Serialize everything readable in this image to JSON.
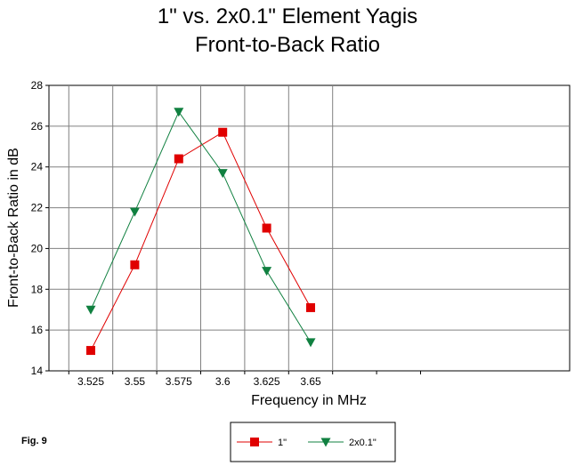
{
  "chart_data": {
    "type": "line",
    "title": [
      "1\" vs. 2x0.1\" Element Yagis",
      "Front-to-Back Ratio"
    ],
    "xlabel": "Frequency in MHz",
    "ylabel": "Front-to-Back Ratio in dB",
    "x_ticks": [
      "3.525",
      "3.55",
      "3.575",
      "3.6",
      "3.625",
      "3.65"
    ],
    "y_ticks": [
      "14",
      "16",
      "18",
      "20",
      "22",
      "24",
      "26",
      "28"
    ],
    "ylim": [
      14,
      28
    ],
    "grid": true,
    "legend_position": "bottom-center",
    "series": [
      {
        "name": "1\"",
        "color": "#e00000",
        "marker": "square",
        "values": [
          15.0,
          19.2,
          24.4,
          25.7,
          21.0,
          17.1
        ]
      },
      {
        "name": "2x0.1\"",
        "color": "#108040",
        "marker": "triangle-down",
        "values": [
          17.0,
          21.8,
          26.7,
          23.7,
          18.9,
          15.4
        ]
      }
    ]
  },
  "figure_label": "Fig. 9"
}
